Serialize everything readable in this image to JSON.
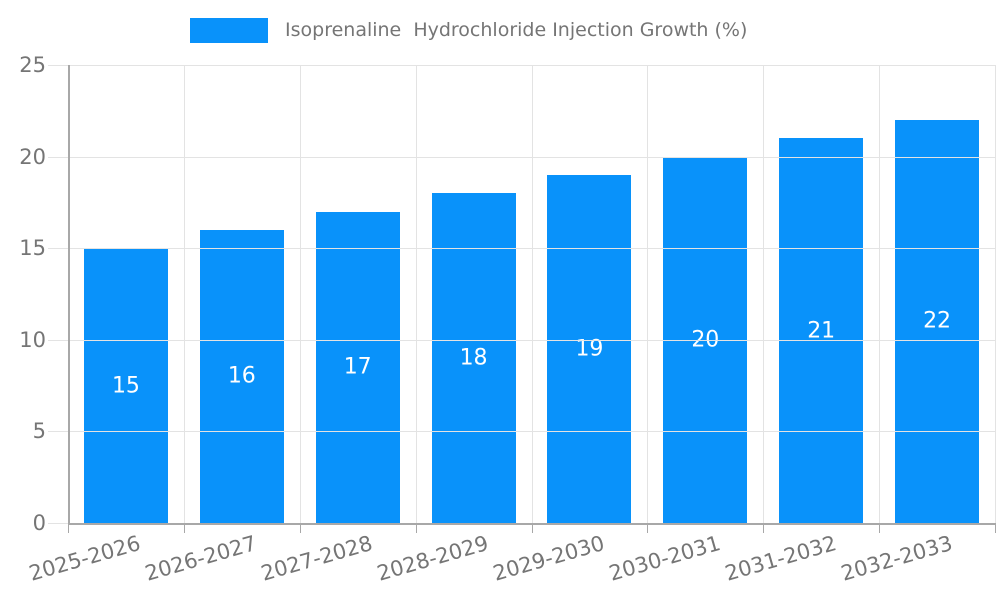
{
  "legend": {
    "label": "Isoprenaline  Hydrochloride Injection Growth (%)"
  },
  "chart_data": {
    "type": "bar",
    "title": "Isoprenaline  Hydrochloride Injection Growth (%)",
    "categories": [
      "2025-2026",
      "2026-2027",
      "2027-2028",
      "2028-2029",
      "2029-2030",
      "2030-2031",
      "2031-2032",
      "2032-2033"
    ],
    "values": [
      15,
      16,
      17,
      18,
      19,
      20,
      21,
      22
    ],
    "value_labels": [
      "15",
      "16",
      "17",
      "18",
      "19",
      "20",
      "21",
      "22"
    ],
    "xlabel": "",
    "ylabel": "",
    "ylim": [
      0,
      25
    ],
    "yticks": [
      0,
      5,
      10,
      15,
      20,
      25
    ],
    "grid": true,
    "legend_position": "top-center",
    "colors": {
      "bar": "#0992fa",
      "value_label": "#ffffff",
      "grid": "#e3e3e3",
      "axis": "#a8a8a8",
      "tick_label": "#757575",
      "background": "#ffffff"
    }
  }
}
